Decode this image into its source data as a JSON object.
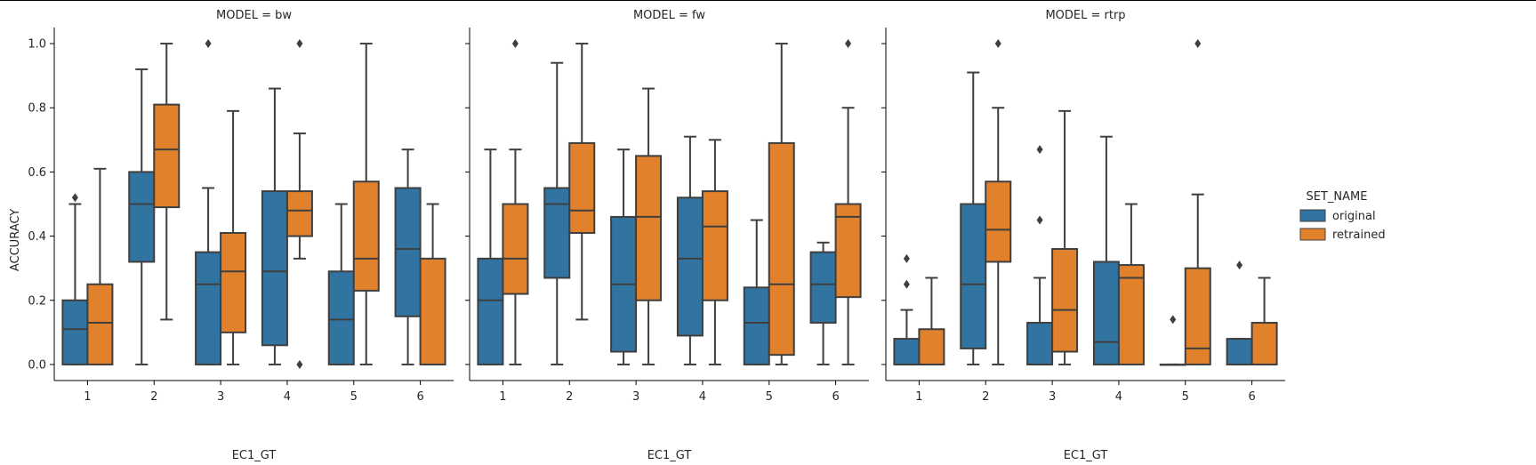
{
  "chart_data": {
    "type": "box",
    "y_label": "ACCURACY",
    "x_label": "EC1_GT",
    "categories": [
      "1",
      "2",
      "3",
      "4",
      "5",
      "6"
    ],
    "y_ticks": [
      "0.0",
      "0.2",
      "0.4",
      "0.6",
      "0.8",
      "1.0"
    ],
    "ylim": [
      -0.05,
      1.05
    ],
    "legend": {
      "title": "SET_NAME",
      "placement": "right",
      "entries": [
        {
          "name": "original",
          "color": "#3274a1"
        },
        {
          "name": "retrained",
          "color": "#e1812c"
        }
      ]
    },
    "panels": [
      {
        "title": "MODEL = bw",
        "series": [
          {
            "name": "original",
            "color": "#3274a1",
            "boxes": [
              {
                "cat": "1",
                "min": 0,
                "q1": 0,
                "median": 0.11,
                "q3": 0.2,
                "max": 0.5,
                "outliers": [
                  0.52
                ]
              },
              {
                "cat": "2",
                "min": 0,
                "q1": 0.32,
                "median": 0.5,
                "q3": 0.6,
                "max": 0.92,
                "outliers": []
              },
              {
                "cat": "3",
                "min": 0,
                "q1": 0,
                "median": 0.25,
                "q3": 0.35,
                "max": 0.55,
                "outliers": [
                  1.0
                ]
              },
              {
                "cat": "4",
                "min": 0,
                "q1": 0.06,
                "median": 0.29,
                "q3": 0.54,
                "max": 0.86,
                "outliers": []
              },
              {
                "cat": "5",
                "min": 0,
                "q1": 0,
                "median": 0.14,
                "q3": 0.29,
                "max": 0.5,
                "outliers": []
              },
              {
                "cat": "6",
                "min": 0,
                "q1": 0.15,
                "median": 0.36,
                "q3": 0.55,
                "max": 0.67,
                "outliers": []
              }
            ]
          },
          {
            "name": "retrained",
            "color": "#e1812c",
            "boxes": [
              {
                "cat": "1",
                "min": 0,
                "q1": 0,
                "median": 0.13,
                "q3": 0.25,
                "max": 0.61,
                "outliers": []
              },
              {
                "cat": "2",
                "min": 0.14,
                "q1": 0.49,
                "median": 0.67,
                "q3": 0.81,
                "max": 1.0,
                "outliers": []
              },
              {
                "cat": "3",
                "min": 0,
                "q1": 0.1,
                "median": 0.29,
                "q3": 0.41,
                "max": 0.79,
                "outliers": []
              },
              {
                "cat": "4",
                "min": 0.33,
                "q1": 0.4,
                "median": 0.48,
                "q3": 0.54,
                "max": 0.72,
                "outliers": [
                  0.0,
                  1.0
                ]
              },
              {
                "cat": "5",
                "min": 0,
                "q1": 0.23,
                "median": 0.33,
                "q3": 0.57,
                "max": 1.0,
                "outliers": []
              },
              {
                "cat": "6",
                "min": 0,
                "q1": 0,
                "median": 0,
                "q3": 0.33,
                "max": 0.5,
                "outliers": []
              }
            ]
          }
        ]
      },
      {
        "title": "MODEL = fw",
        "series": [
          {
            "name": "original",
            "color": "#3274a1",
            "boxes": [
              {
                "cat": "1",
                "min": 0,
                "q1": 0,
                "median": 0.2,
                "q3": 0.33,
                "max": 0.67,
                "outliers": []
              },
              {
                "cat": "2",
                "min": 0,
                "q1": 0.27,
                "median": 0.5,
                "q3": 0.55,
                "max": 0.94,
                "outliers": []
              },
              {
                "cat": "3",
                "min": 0,
                "q1": 0.04,
                "median": 0.25,
                "q3": 0.46,
                "max": 0.67,
                "outliers": []
              },
              {
                "cat": "4",
                "min": 0,
                "q1": 0.09,
                "median": 0.33,
                "q3": 0.52,
                "max": 0.71,
                "outliers": []
              },
              {
                "cat": "5",
                "min": 0,
                "q1": 0,
                "median": 0.13,
                "q3": 0.24,
                "max": 0.45,
                "outliers": []
              },
              {
                "cat": "6",
                "min": 0,
                "q1": 0.13,
                "median": 0.25,
                "q3": 0.35,
                "max": 0.38,
                "outliers": []
              }
            ]
          },
          {
            "name": "retrained",
            "color": "#e1812c",
            "boxes": [
              {
                "cat": "1",
                "min": 0,
                "q1": 0.22,
                "median": 0.33,
                "q3": 0.5,
                "max": 0.67,
                "outliers": [
                  1.0
                ]
              },
              {
                "cat": "2",
                "min": 0.14,
                "q1": 0.41,
                "median": 0.48,
                "q3": 0.69,
                "max": 1.0,
                "outliers": []
              },
              {
                "cat": "3",
                "min": 0,
                "q1": 0.2,
                "median": 0.46,
                "q3": 0.65,
                "max": 0.86,
                "outliers": []
              },
              {
                "cat": "4",
                "min": 0,
                "q1": 0.2,
                "median": 0.43,
                "q3": 0.54,
                "max": 0.7,
                "outliers": []
              },
              {
                "cat": "5",
                "min": 0,
                "q1": 0.03,
                "median": 0.25,
                "q3": 0.69,
                "max": 1.0,
                "outliers": []
              },
              {
                "cat": "6",
                "min": 0,
                "q1": 0.21,
                "median": 0.46,
                "q3": 0.5,
                "max": 0.8,
                "outliers": [
                  1.0
                ]
              }
            ]
          }
        ]
      },
      {
        "title": "MODEL = rtrp",
        "series": [
          {
            "name": "original",
            "color": "#3274a1",
            "boxes": [
              {
                "cat": "1",
                "min": 0,
                "q1": 0,
                "median": 0,
                "q3": 0.08,
                "max": 0.17,
                "outliers": [
                  0.25,
                  0.33
                ]
              },
              {
                "cat": "2",
                "min": 0,
                "q1": 0.05,
                "median": 0.25,
                "q3": 0.5,
                "max": 0.91,
                "outliers": []
              },
              {
                "cat": "3",
                "min": 0,
                "q1": 0,
                "median": 0,
                "q3": 0.13,
                "max": 0.27,
                "outliers": [
                  0.45,
                  0.67
                ]
              },
              {
                "cat": "4",
                "min": 0,
                "q1": 0,
                "median": 0.07,
                "q3": 0.32,
                "max": 0.71,
                "outliers": []
              },
              {
                "cat": "5",
                "min": 0,
                "q1": 0,
                "median": 0,
                "q3": 0,
                "max": 0,
                "outliers": [
                  0.14
                ]
              },
              {
                "cat": "6",
                "min": 0,
                "q1": 0,
                "median": 0,
                "q3": 0.08,
                "max": 0.08,
                "outliers": [
                  0.31
                ]
              }
            ]
          },
          {
            "name": "retrained",
            "color": "#e1812c",
            "boxes": [
              {
                "cat": "1",
                "min": 0,
                "q1": 0,
                "median": 0,
                "q3": 0.11,
                "max": 0.27,
                "outliers": []
              },
              {
                "cat": "2",
                "min": 0,
                "q1": 0.32,
                "median": 0.42,
                "q3": 0.57,
                "max": 0.8,
                "outliers": [
                  1.0
                ]
              },
              {
                "cat": "3",
                "min": 0,
                "q1": 0.04,
                "median": 0.17,
                "q3": 0.36,
                "max": 0.79,
                "outliers": []
              },
              {
                "cat": "4",
                "min": 0,
                "q1": 0,
                "median": 0.27,
                "q3": 0.31,
                "max": 0.5,
                "outliers": []
              },
              {
                "cat": "5",
                "min": 0,
                "q1": 0,
                "median": 0.05,
                "q3": 0.3,
                "max": 0.53,
                "outliers": [
                  1.0
                ]
              },
              {
                "cat": "6",
                "min": 0,
                "q1": 0,
                "median": 0,
                "q3": 0.13,
                "max": 0.27,
                "outliers": []
              }
            ]
          }
        ]
      }
    ]
  }
}
